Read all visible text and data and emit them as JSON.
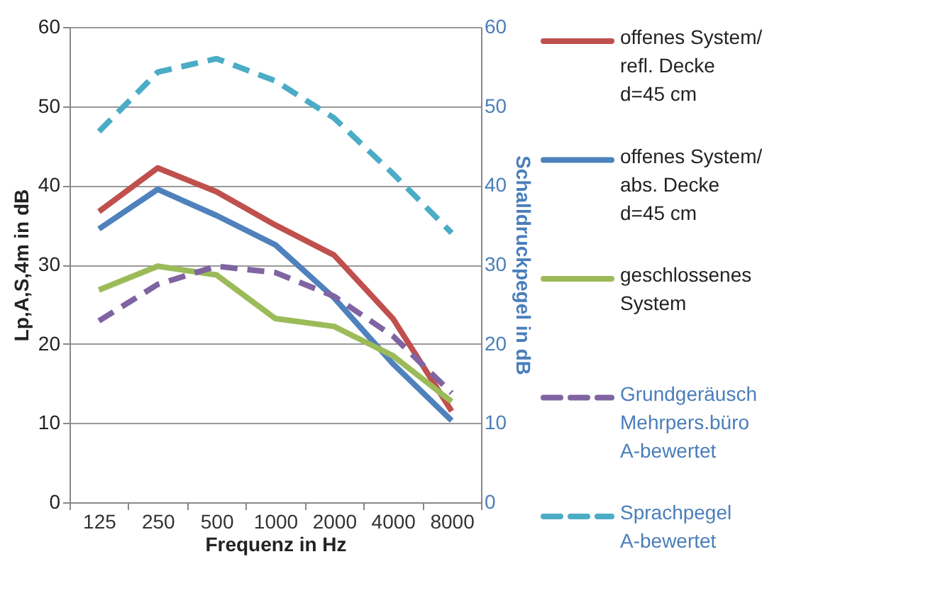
{
  "chart_data": {
    "type": "line",
    "xlabel": "Frequenz in Hz",
    "ylabel": "Lp,A,S,4m in dB",
    "y2label": "Schalldruckpegel in dB",
    "categories": [
      "125",
      "250",
      "500",
      "1000",
      "2000",
      "4000",
      "8000"
    ],
    "series": [
      {
        "name": "offenes System/ refl. Decke d=45 cm",
        "color": "#c0504d",
        "values": [
          36.7,
          42.2,
          39.2,
          35.0,
          31.2,
          23.2,
          11.5
        ]
      },
      {
        "name": "offenes System/ abs. Decke d=45 cm",
        "color": "#4f81bd",
        "values": [
          34.5,
          39.5,
          36.2,
          32.5,
          25.8,
          17.5,
          10.3
        ]
      },
      {
        "name": "geschlossenes System",
        "color": "#9bbb59",
        "values": [
          26.8,
          29.8,
          28.7,
          23.2,
          22.2,
          18.5,
          12.7
        ]
      },
      {
        "name": "Grundgeräusch Mehrpers.büro A-bewertet",
        "color": "#8064a2",
        "axis": "y2",
        "line_style": "dashed",
        "values": [
          22.9,
          27.5,
          29.8,
          29.0,
          26.0,
          21.0,
          13.8
        ]
      },
      {
        "name": "Sprachpegel A-bewertet",
        "color": "#4bacc6",
        "axis": "y2",
        "line_style": "dashed",
        "values": [
          46.8,
          54.3,
          56.0,
          53.2,
          48.5,
          41.5,
          34.0
        ]
      }
    ],
    "ylim": [
      0,
      60
    ],
    "yticks": [
      0,
      10,
      20,
      30,
      40,
      50,
      60
    ],
    "y2lim": [
      0,
      60
    ],
    "y2ticks": [
      0,
      10,
      20,
      30,
      40,
      50,
      60
    ],
    "grid": "y",
    "legend": "right",
    "line_style": "solid"
  }
}
